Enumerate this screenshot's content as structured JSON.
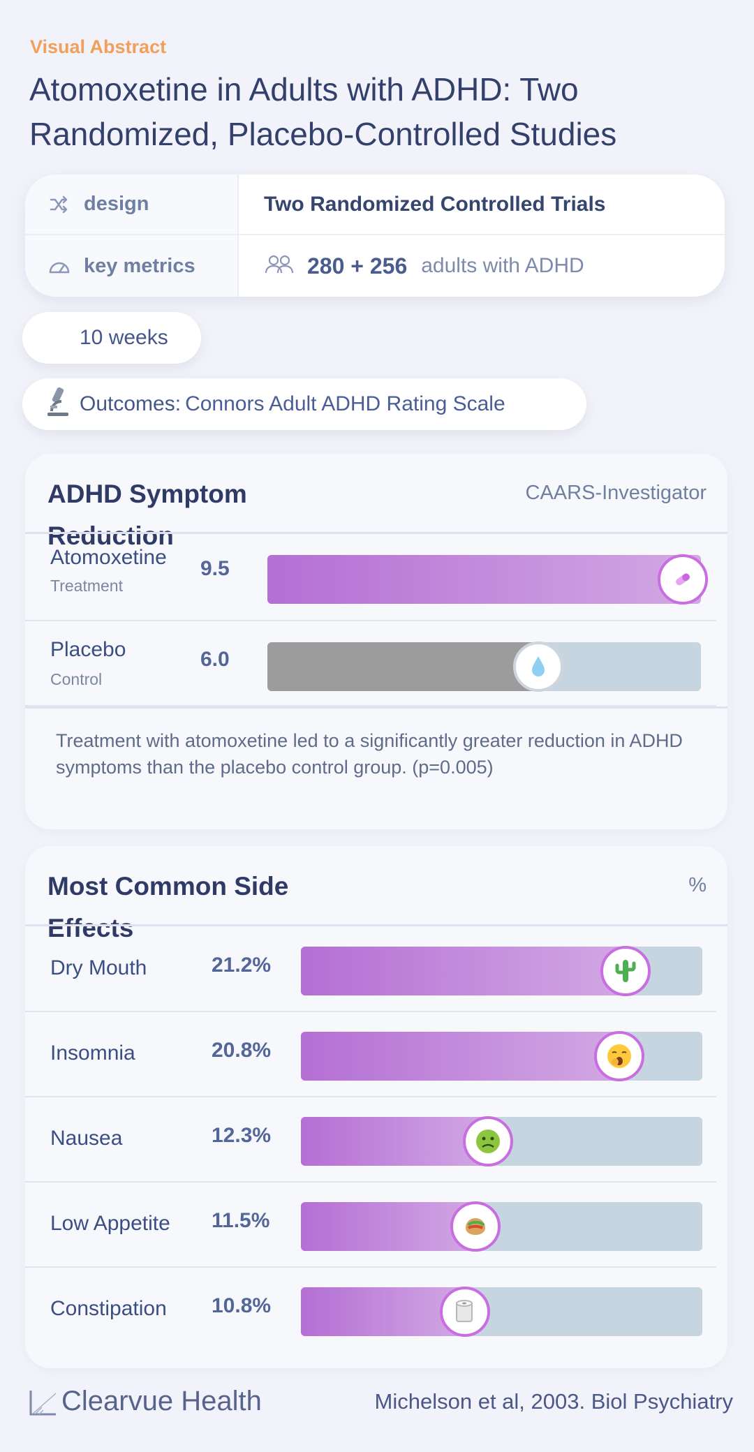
{
  "kicker": "Visual Abstract",
  "title": "Atomoxetine in Adults with ADHD: Two Randomized, Placebo-Controlled Studies",
  "design": {
    "label": "design",
    "value": "Two Randomized Controlled Trials",
    "metrics_label": "key metrics",
    "metrics_number": "280 + 256",
    "metrics_text": "adults with ADHD"
  },
  "duration": "10 weeks",
  "outcomes": {
    "label": "Outcomes:",
    "value": "Connors Adult ADHD Rating Scale"
  },
  "symptom_panel": {
    "title": "ADHD Symptom Reduction",
    "subtitle": "CAARS-Investigator",
    "note": "Treatment with atomoxetine led to a significantly greater reduction in ADHD symptoms than the placebo control group. (p=0.005)",
    "rows": [
      {
        "label": "Atomoxetine",
        "sub": "Treatment",
        "value_text": "9.5",
        "value": 9.5,
        "icon": "pill-icon"
      },
      {
        "label": "Placebo",
        "sub": "Control",
        "value_text": "6.0",
        "value": 6.0,
        "icon": "droplet-icon"
      }
    ],
    "max": 9.5
  },
  "side_panel": {
    "title": "Most Common Side Effects",
    "unit": "%",
    "rows": [
      {
        "label": "Dry Mouth",
        "value_text": "21.2%",
        "value": 21.2,
        "icon": "cactus-icon"
      },
      {
        "label": "Insomnia",
        "value_text": "20.8%",
        "value": 20.8,
        "icon": "yawning-face-icon"
      },
      {
        "label": "Nausea",
        "value_text": "12.3%",
        "value": 12.3,
        "icon": "nauseated-face-icon"
      },
      {
        "label": "Low Appetite",
        "value_text": "11.5%",
        "value": 11.5,
        "icon": "burrito-icon"
      },
      {
        "label": "Constipation",
        "value_text": "10.8%",
        "value": 10.8,
        "icon": "toilet-paper-icon"
      }
    ],
    "max": 26
  },
  "footer": {
    "brand": "Clearvue Health",
    "citation": "Michelson et al, 2003. Biol Psychiatry"
  },
  "colors": {
    "accent": "#f0a05a",
    "bar_fill": "#b46fd4",
    "track": "#c6d5e0",
    "placebo": "#9c9c9c"
  }
}
